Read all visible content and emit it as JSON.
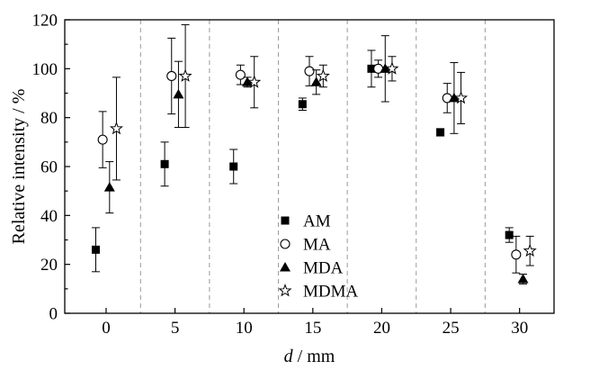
{
  "chart_data": {
    "type": "scatter",
    "title": "",
    "xlabel_italic": "d",
    "xlabel_rest": " / mm",
    "ylabel": "Relative intensity / %",
    "xlim": [
      -3,
      32.5
    ],
    "ylim": [
      0,
      120
    ],
    "xticks": [
      0,
      5,
      10,
      15,
      20,
      25,
      30
    ],
    "yticks": [
      0,
      20,
      40,
      60,
      80,
      100,
      120
    ],
    "group_separators": [
      2.5,
      7.5,
      12.5,
      17.5,
      22.5,
      27.5
    ],
    "legend_position": "center",
    "series": [
      {
        "name": "AM",
        "marker": "square-filled",
        "points": [
          {
            "x": -0.75,
            "y": 26,
            "err": 9
          },
          {
            "x": 4.25,
            "y": 61,
            "err": 9
          },
          {
            "x": 9.25,
            "y": 60,
            "err": 7
          },
          {
            "x": 14.25,
            "y": 85.5,
            "err": 2.5
          },
          {
            "x": 19.25,
            "y": 100,
            "err": 7.5
          },
          {
            "x": 24.25,
            "y": 74,
            "err": 1.5
          },
          {
            "x": 29.25,
            "y": 32,
            "err": 3
          }
        ]
      },
      {
        "name": "MA",
        "marker": "circle-open",
        "points": [
          {
            "x": -0.25,
            "y": 71,
            "err": 11.5
          },
          {
            "x": 4.75,
            "y": 97,
            "err": 15.5
          },
          {
            "x": 9.75,
            "y": 97.5,
            "err": 4
          },
          {
            "x": 14.75,
            "y": 99,
            "err": 6
          },
          {
            "x": 19.75,
            "y": 100,
            "err": 3.5
          },
          {
            "x": 24.75,
            "y": 88,
            "err": 6
          },
          {
            "x": 29.75,
            "y": 24,
            "err": 7.5
          }
        ]
      },
      {
        "name": "MDA",
        "marker": "triangle-filled",
        "points": [
          {
            "x": 0.25,
            "y": 51.5,
            "err": 10.5
          },
          {
            "x": 5.25,
            "y": 89.5,
            "err": 13.5
          },
          {
            "x": 10.25,
            "y": 94.5,
            "err": 2
          },
          {
            "x": 15.25,
            "y": 94.5,
            "err": 5
          },
          {
            "x": 20.25,
            "y": 100,
            "err": 13.5
          },
          {
            "x": 25.25,
            "y": 88,
            "err": 14.5
          },
          {
            "x": 30.25,
            "y": 14,
            "err": 2
          }
        ]
      },
      {
        "name": "MDMA",
        "marker": "star-open",
        "points": [
          {
            "x": 0.75,
            "y": 75.5,
            "err": 21
          },
          {
            "x": 5.75,
            "y": 97,
            "err": 21
          },
          {
            "x": 10.75,
            "y": 94.5,
            "err": 10.5
          },
          {
            "x": 15.75,
            "y": 97,
            "err": 4.5
          },
          {
            "x": 20.75,
            "y": 100,
            "err": 5
          },
          {
            "x": 25.75,
            "y": 88,
            "err": 10.5
          },
          {
            "x": 30.75,
            "y": 25.5,
            "err": 6
          }
        ]
      }
    ]
  }
}
